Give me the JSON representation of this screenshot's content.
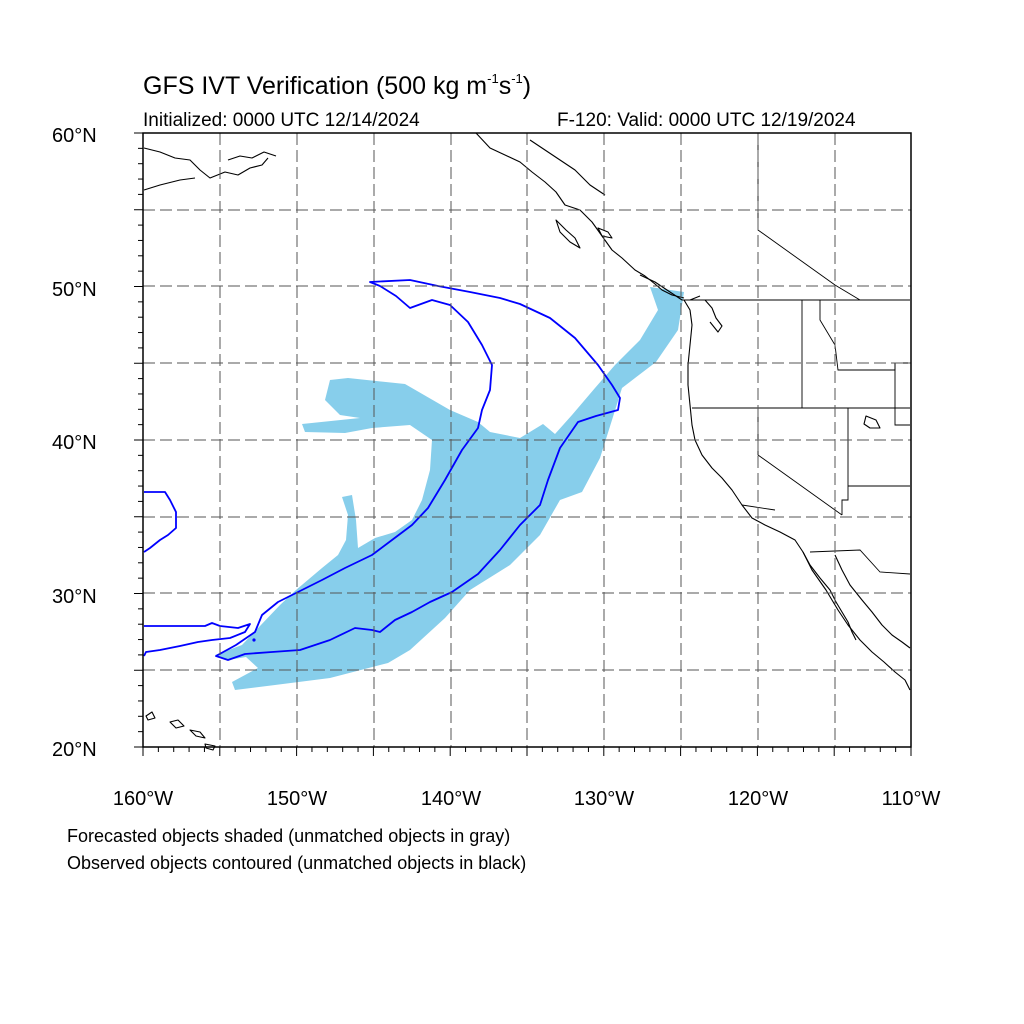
{
  "title": {
    "prefix": "GFS IVT Verification (500 kg m",
    "sup1": "-1",
    "mid": "s",
    "sup2": "-1",
    "suffix": ")"
  },
  "initialized": "Initialized: 0000 UTC 12/14/2024",
  "valid": "F-120: Valid: 0000 UTC 12/19/2024",
  "lat_labels": [
    "60°N",
    "50°N",
    "40°N",
    "30°N",
    "20°N"
  ],
  "lon_labels": [
    "160°W",
    "150°W",
    "140°W",
    "130°W",
    "120°W",
    "110°W"
  ],
  "notes": [
    "Forecasted objects shaded (unmatched objects in gray)",
    "Observed objects contoured (unmatched objects in black)"
  ],
  "colors": {
    "forecast_fill": "#87ceeb",
    "observed_contour": "#0000ff",
    "coastline": "#000000",
    "gridline": "#555555"
  },
  "map_extent": {
    "lon_min": -160,
    "lon_max": -110,
    "lat_min": 20,
    "lat_max": 60
  }
}
